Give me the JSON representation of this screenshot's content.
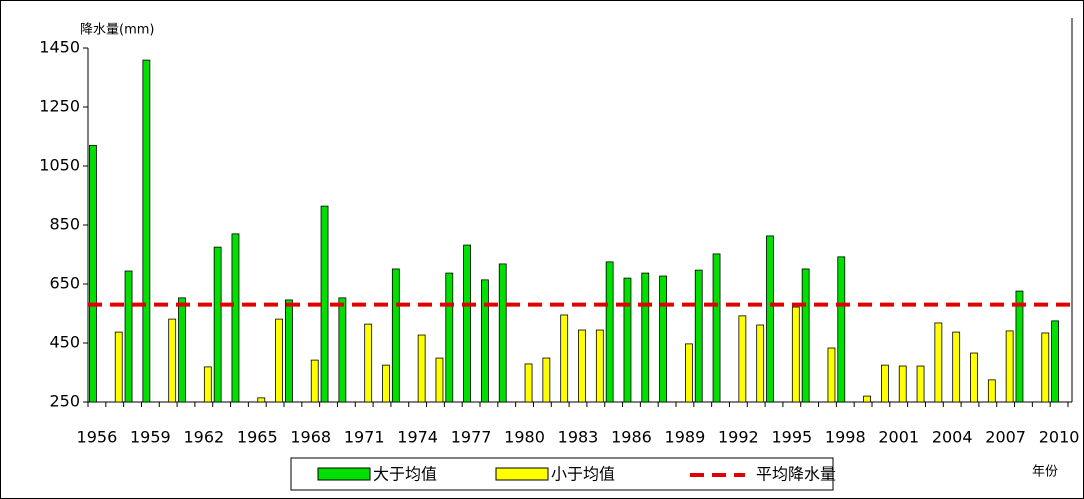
{
  "chart_data": {
    "type": "bar",
    "y_label": "降水量(mm)",
    "x_label": "年份",
    "categories": [
      1956,
      null,
      null,
      1959,
      null,
      null,
      1962,
      null,
      null,
      1965,
      null,
      null,
      1968,
      null,
      null,
      1971,
      null,
      null,
      1974,
      null,
      null,
      1977,
      null,
      null,
      1980,
      null,
      null,
      1983,
      null,
      null,
      1986,
      null,
      null,
      1989,
      null,
      null,
      1992,
      null,
      null,
      1995,
      null,
      null,
      1998,
      null,
      null,
      2001,
      null,
      null,
      2004,
      null,
      null,
      2007,
      null,
      null,
      2010
    ],
    "series": [
      {
        "name": "大于均值",
        "color": "#00e000",
        "values": [
          1120,
          null,
          694,
          1409,
          null,
          603,
          null,
          775,
          820,
          null,
          null,
          596,
          null,
          914,
          603,
          null,
          null,
          701,
          null,
          null,
          687,
          782,
          664,
          718,
          null,
          null,
          null,
          null,
          null,
          725,
          670,
          687,
          677,
          null,
          697,
          752,
          null,
          null,
          813,
          null,
          701,
          null,
          742,
          null,
          null,
          null,
          null,
          null,
          null,
          null,
          null,
          null,
          626,
          null,
          525
        ]
      },
      {
        "name": "小于均值",
        "color": "#ffff00",
        "values": [
          null,
          487,
          null,
          null,
          531,
          null,
          369,
          null,
          null,
          264,
          531,
          null,
          392,
          null,
          null,
          514,
          375,
          null,
          477,
          399,
          null,
          null,
          null,
          null,
          379,
          399,
          545,
          494,
          494,
          null,
          null,
          null,
          null,
          447,
          null,
          null,
          542,
          511,
          null,
          572,
          null,
          433,
          null,
          270,
          375,
          372,
          372,
          518,
          487,
          416,
          325,
          491,
          null,
          484,
          null
        ]
      }
    ],
    "reference_lines": [
      {
        "name": "平均降水量",
        "value": 580,
        "color": "#e00000"
      }
    ],
    "ylim": [
      250,
      1450
    ],
    "yticks": [
      250,
      450,
      650,
      850,
      1050,
      1250,
      1450
    ]
  }
}
